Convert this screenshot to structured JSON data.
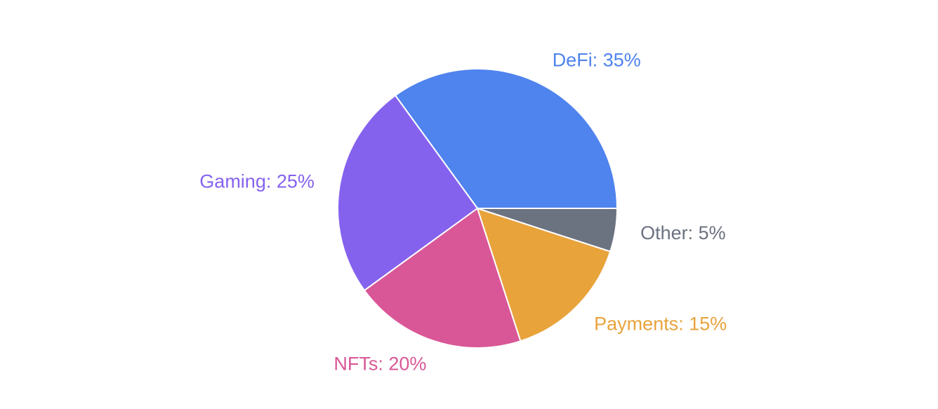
{
  "chart_data": {
    "type": "pie",
    "values": [
      35,
      25,
      20,
      15,
      5
    ],
    "value_labels": [
      "DeFi: 35%",
      "Gaming: 25%",
      "NFTs: 20%",
      "Payments: 15%",
      "Other: 5%"
    ],
    "colors": [
      "#4f83ee",
      "#8562ee",
      "#d95797",
      "#e8a33b",
      "#6b7280"
    ]
  }
}
